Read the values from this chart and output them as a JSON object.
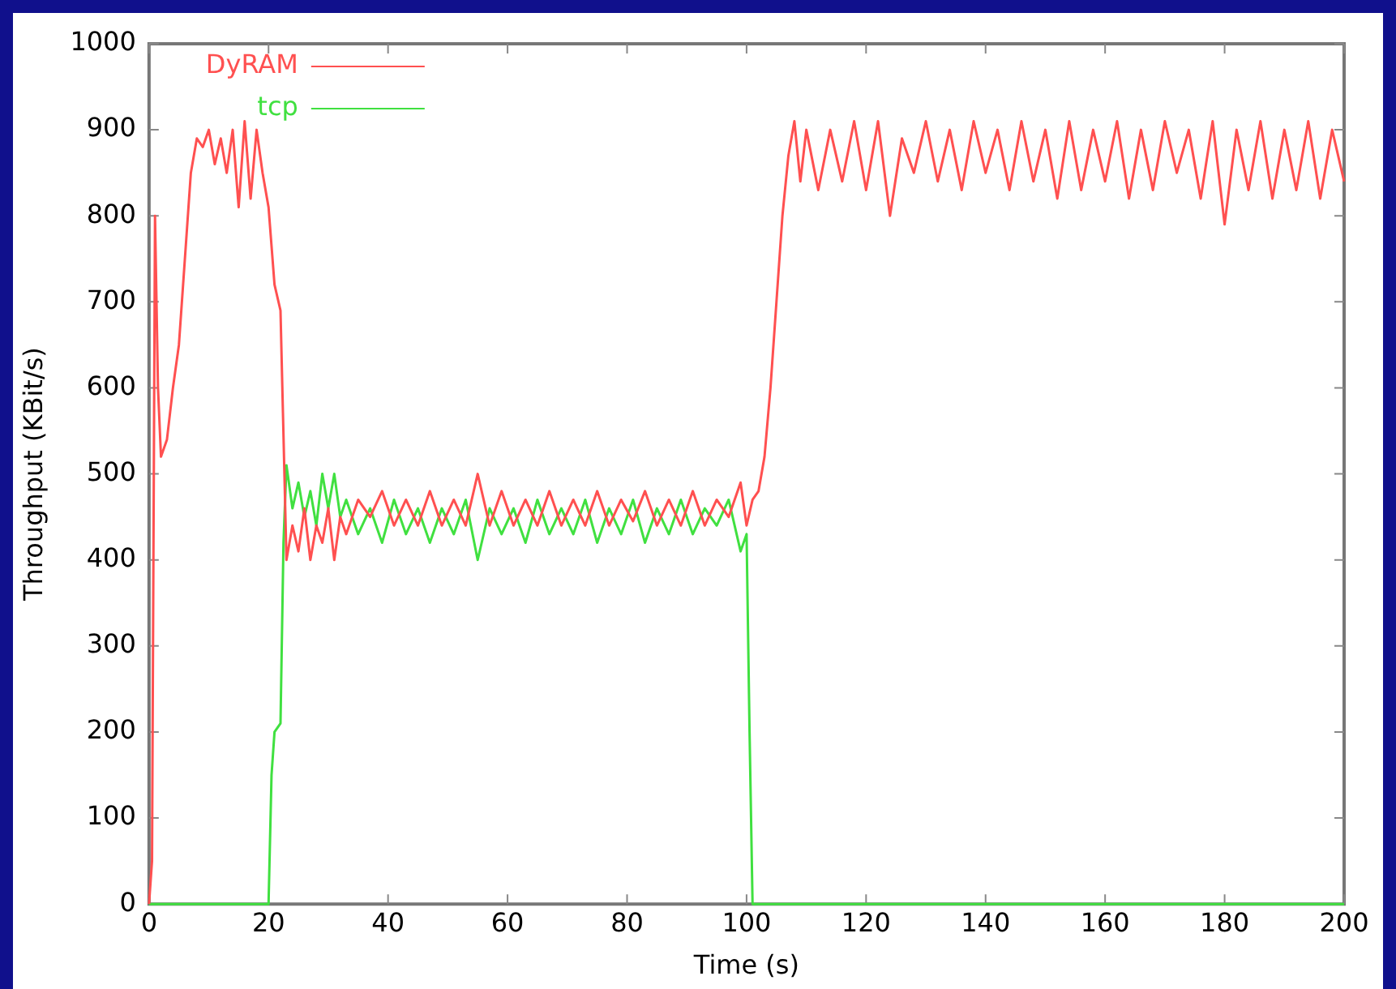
{
  "chart_data": {
    "type": "line",
    "xlabel": "Time (s)",
    "ylabel": "Throughput (KBit/s)",
    "xlim": [
      0,
      200
    ],
    "ylim": [
      0,
      1000
    ],
    "xticks": [
      0,
      20,
      40,
      60,
      80,
      100,
      120,
      140,
      160,
      180,
      200
    ],
    "yticks": [
      0,
      100,
      200,
      300,
      400,
      500,
      600,
      700,
      800,
      900,
      1000
    ],
    "legend": "top left",
    "grid": false,
    "marker": "none",
    "line_style": "solid",
    "series": [
      {
        "name": "DyRAM",
        "color": "#ff5050",
        "x": [
          0,
          0.5,
          1,
          1.5,
          2,
          3,
          4,
          5,
          6,
          7,
          8,
          9,
          10,
          11,
          12,
          13,
          14,
          15,
          16,
          17,
          18,
          19,
          20,
          21,
          22,
          23,
          24,
          25,
          26,
          27,
          28,
          29,
          30,
          31,
          32,
          33,
          35,
          37,
          39,
          41,
          43,
          45,
          47,
          49,
          51,
          53,
          55,
          57,
          59,
          61,
          63,
          65,
          67,
          69,
          71,
          73,
          75,
          77,
          79,
          81,
          83,
          85,
          87,
          89,
          91,
          93,
          95,
          97,
          99,
          100,
          101,
          102,
          103,
          104,
          105,
          106,
          107,
          108,
          109,
          110,
          112,
          114,
          116,
          118,
          120,
          122,
          124,
          126,
          128,
          130,
          132,
          134,
          136,
          138,
          140,
          142,
          144,
          146,
          148,
          150,
          152,
          154,
          156,
          158,
          160,
          162,
          164,
          166,
          168,
          170,
          172,
          174,
          176,
          178,
          180,
          182,
          184,
          186,
          188,
          190,
          192,
          194,
          196,
          198,
          200
        ],
        "values": [
          0,
          50,
          800,
          600,
          520,
          540,
          600,
          650,
          750,
          850,
          890,
          880,
          900,
          860,
          890,
          850,
          900,
          810,
          910,
          820,
          900,
          850,
          810,
          720,
          690,
          400,
          440,
          410,
          460,
          400,
          440,
          420,
          460,
          400,
          450,
          430,
          470,
          450,
          480,
          440,
          470,
          440,
          480,
          440,
          470,
          440,
          500,
          440,
          480,
          440,
          470,
          440,
          480,
          440,
          470,
          440,
          480,
          440,
          470,
          445,
          480,
          440,
          470,
          440,
          480,
          440,
          470,
          450,
          490,
          440,
          470,
          480,
          520,
          600,
          700,
          800,
          870,
          910,
          840,
          900,
          830,
          900,
          840,
          910,
          830,
          910,
          800,
          890,
          850,
          910,
          840,
          900,
          830,
          910,
          850,
          900,
          830,
          910,
          840,
          900,
          820,
          910,
          830,
          900,
          840,
          910,
          820,
          900,
          830,
          910,
          850,
          900,
          820,
          910,
          790,
          900,
          830,
          910,
          820,
          900,
          830,
          910,
          820,
          900,
          840
        ]
      },
      {
        "name": "tcp",
        "color": "#40e040",
        "x": [
          0,
          20,
          20.5,
          21,
          22,
          22.5,
          23,
          24,
          25,
          26,
          27,
          28,
          29,
          30,
          31,
          32,
          33,
          35,
          37,
          39,
          41,
          43,
          45,
          47,
          49,
          51,
          53,
          55,
          57,
          59,
          61,
          63,
          65,
          67,
          69,
          71,
          73,
          75,
          77,
          79,
          81,
          83,
          85,
          87,
          89,
          91,
          93,
          95,
          97,
          99,
          100,
          100.5,
          101,
          200
        ],
        "values": [
          0,
          0,
          150,
          200,
          210,
          420,
          510,
          460,
          490,
          450,
          480,
          440,
          500,
          460,
          500,
          450,
          470,
          430,
          460,
          420,
          470,
          430,
          460,
          420,
          460,
          430,
          470,
          400,
          460,
          430,
          460,
          420,
          470,
          430,
          460,
          430,
          470,
          420,
          460,
          430,
          470,
          420,
          460,
          430,
          470,
          430,
          460,
          440,
          470,
          410,
          430,
          200,
          0,
          0
        ]
      }
    ]
  }
}
